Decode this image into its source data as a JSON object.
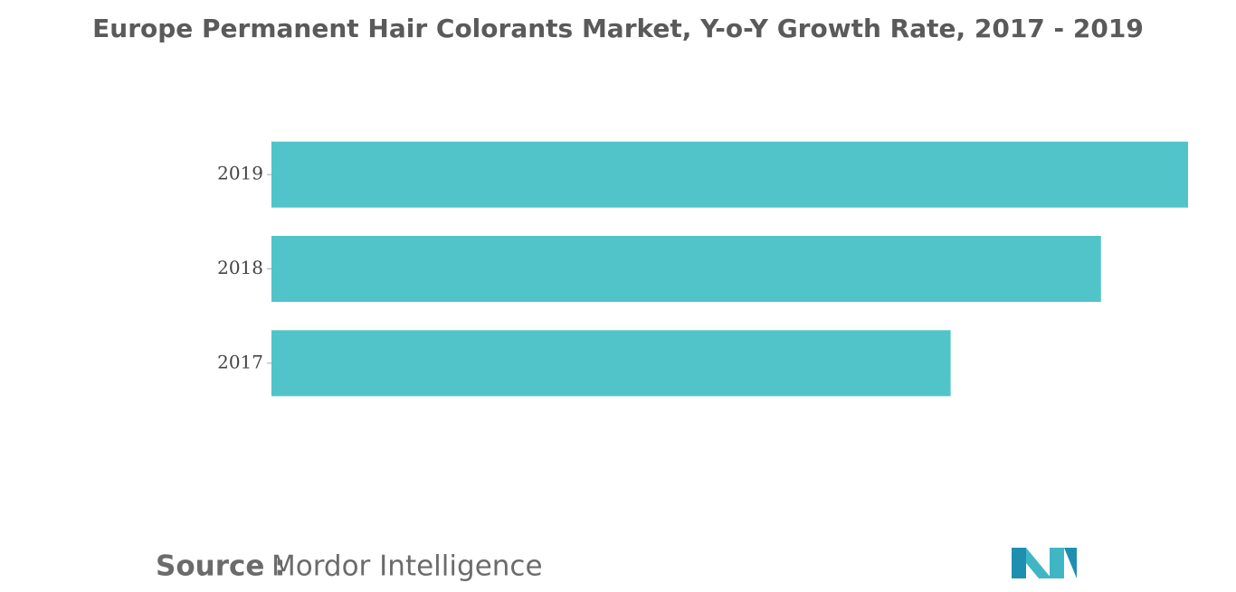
{
  "chart_data": {
    "type": "barh",
    "title": "Europe Permanent Hair Colorants Market, Y-o-Y Growth Rate, 2017 - 2019",
    "categories": [
      "2017",
      "2018",
      "2019"
    ],
    "values": [
      74.1,
      90.5,
      100
    ],
    "color": "#51c4c9",
    "xlim": [
      0,
      100
    ],
    "source_label": "Source :",
    "source": "Mordor Intelligence"
  }
}
